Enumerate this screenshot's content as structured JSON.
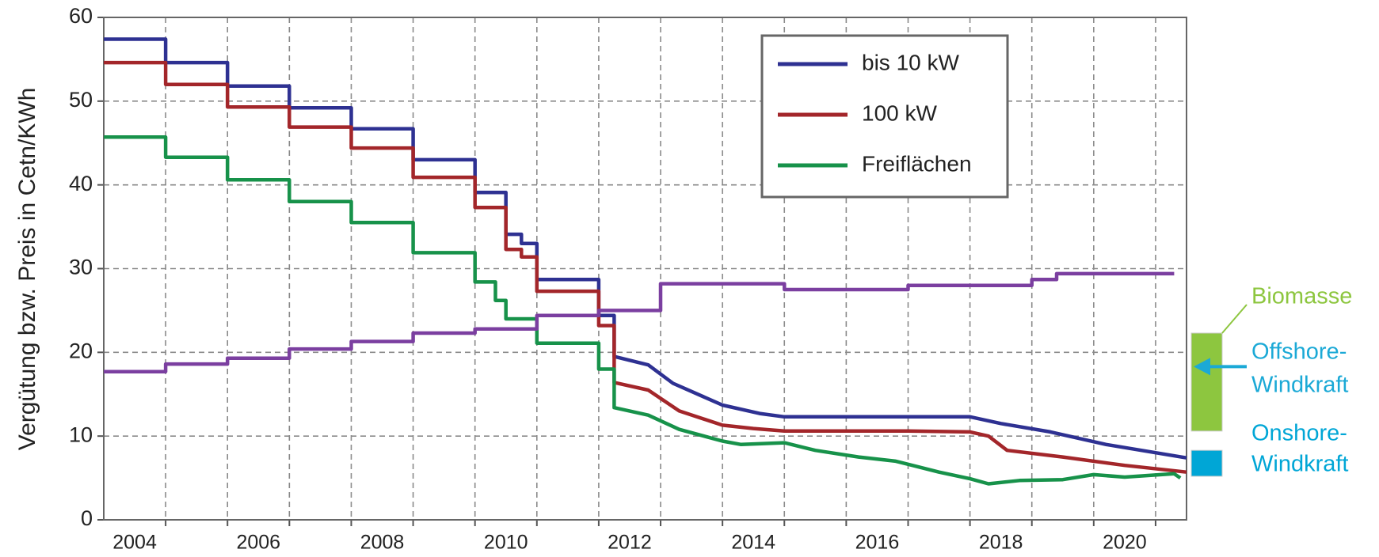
{
  "chart_data": {
    "type": "line",
    "y_label": "Vergütung bzw. Preis in Cetn/KWh",
    "xlim": [
      2004,
      2021.5
    ],
    "ylim": [
      0,
      60
    ],
    "yticks": [
      0,
      10,
      20,
      30,
      40,
      50,
      60
    ],
    "xticks": [
      {
        "value": 2004.5,
        "label": "2004"
      },
      {
        "value": 2006.5,
        "label": "2006"
      },
      {
        "value": 2008.5,
        "label": "2008"
      },
      {
        "value": 2010.5,
        "label": "2010"
      },
      {
        "value": 2012.5,
        "label": "2012"
      },
      {
        "value": 2014.5,
        "label": "2014"
      },
      {
        "value": 2016.5,
        "label": "2016"
      },
      {
        "value": 2018.5,
        "label": "2018"
      },
      {
        "value": 2020.5,
        "label": "2020"
      }
    ],
    "xgrid": [
      2005,
      2006,
      2007,
      2008,
      2009,
      2010,
      2011,
      2012,
      2013,
      2014,
      2015,
      2016,
      2017,
      2018,
      2019,
      2020,
      2021
    ],
    "grid": true,
    "legend": "upper right",
    "series": [
      {
        "name": "bis 10 kW",
        "color": "#2e3192",
        "x": [
          2004,
          2005,
          2005,
          2006,
          2006,
          2007,
          2007,
          2008,
          2008,
          2009,
          2009,
          2010,
          2010,
          2010.5,
          2010.5,
          2010.75,
          2010.75,
          2011,
          2011,
          2012,
          2012,
          2012.25,
          2012.25,
          2012.8,
          2013.2,
          2014,
          2014.6,
          2015,
          2018,
          2018.5,
          2019.3,
          2020.2,
          2021.5
        ],
        "values": [
          57.4,
          57.4,
          54.6,
          54.6,
          51.8,
          51.8,
          49.2,
          49.2,
          46.7,
          46.7,
          43.0,
          43.0,
          39.1,
          39.1,
          34.1,
          34.1,
          33.0,
          33.0,
          28.7,
          28.7,
          24.4,
          24.4,
          19.5,
          18.5,
          16.3,
          13.7,
          12.7,
          12.3,
          12.3,
          11.5,
          10.5,
          9.0,
          7.4
        ]
      },
      {
        "name": "100 kW",
        "color": "#a3262a",
        "x": [
          2004,
          2005,
          2005,
          2006,
          2006,
          2007,
          2007,
          2008,
          2008,
          2009,
          2009,
          2010,
          2010,
          2010.5,
          2010.5,
          2010.75,
          2010.75,
          2011,
          2011,
          2012,
          2012,
          2012.25,
          2012.25,
          2012.8,
          2013.3,
          2014,
          2014.5,
          2015,
          2017,
          2018,
          2018.3,
          2018.6,
          2019.5,
          2020.5,
          2021.5
        ],
        "values": [
          54.6,
          54.6,
          52.0,
          52.0,
          49.3,
          49.3,
          46.9,
          46.9,
          44.4,
          44.4,
          40.9,
          40.9,
          37.3,
          37.3,
          32.3,
          32.3,
          31.4,
          31.4,
          27.3,
          27.3,
          23.2,
          23.2,
          16.4,
          15.5,
          13.0,
          11.3,
          10.9,
          10.6,
          10.6,
          10.5,
          10.0,
          8.3,
          7.5,
          6.5,
          5.7
        ]
      },
      {
        "name": "Freiflächen",
        "color": "#17924a",
        "x": [
          2004,
          2005,
          2005,
          2006,
          2006,
          2007,
          2007,
          2008,
          2008,
          2009,
          2009,
          2010,
          2010,
          2010.33,
          2010.33,
          2010.5,
          2010.5,
          2011,
          2011,
          2012,
          2012,
          2012.25,
          2012.25,
          2012.8,
          2013.3,
          2014,
          2014.3,
          2015,
          2015.5,
          2016.2,
          2016.8,
          2017.5,
          2018,
          2018.3,
          2018.8,
          2019.5,
          2020,
          2020.5,
          2021.3,
          2021.4
        ],
        "values": [
          45.7,
          45.7,
          43.3,
          43.3,
          40.6,
          40.6,
          38.0,
          38.0,
          35.5,
          35.5,
          31.9,
          31.9,
          28.4,
          28.4,
          26.2,
          26.2,
          24.0,
          24.0,
          21.1,
          21.1,
          18.0,
          18.0,
          13.4,
          12.5,
          10.8,
          9.4,
          9.0,
          9.2,
          8.3,
          7.5,
          7.0,
          5.7,
          4.9,
          4.3,
          4.7,
          4.8,
          5.4,
          5.1,
          5.5,
          5.0
        ]
      },
      {
        "color": "#7b3fa0",
        "x": [
          2004,
          2005,
          2005,
          2006,
          2006,
          2007,
          2007,
          2008,
          2008,
          2009,
          2009,
          2010,
          2010,
          2011,
          2011,
          2012,
          2012,
          2013,
          2013,
          2015,
          2015,
          2017,
          2017,
          2019,
          2019,
          2019.4,
          2019.4,
          2021.3
        ],
        "values": [
          17.7,
          17.7,
          18.6,
          18.6,
          19.3,
          19.3,
          20.4,
          20.4,
          21.3,
          21.3,
          22.3,
          22.3,
          22.8,
          22.8,
          24.4,
          24.4,
          25.0,
          25.0,
          28.2,
          28.2,
          27.5,
          27.5,
          28.0,
          28.0,
          28.7,
          28.7,
          29.4,
          29.4
        ]
      }
    ],
    "side_markers": [
      {
        "lines": [
          "Biomasse"
        ],
        "range": [
          10.6,
          22.3
        ],
        "color": "#8dc63f"
      },
      {
        "lines": [
          "Offshore-",
          "Windkraft"
        ],
        "arrow_at": 18.3,
        "color": "#1ba9d6"
      },
      {
        "lines": [
          "Onshore-",
          "Windkraft"
        ],
        "range": [
          5.2,
          8.3
        ],
        "color": "#00a6d6"
      }
    ]
  }
}
